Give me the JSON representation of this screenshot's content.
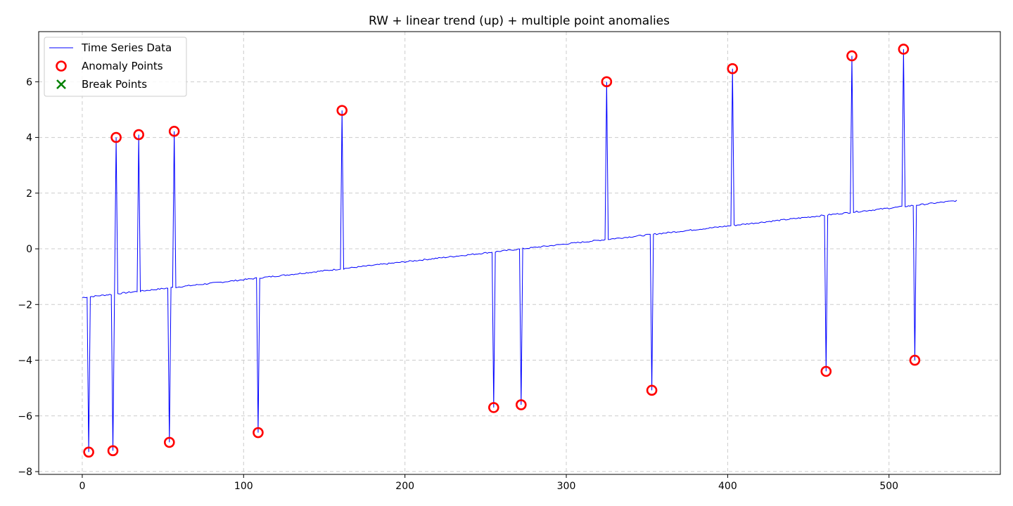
{
  "chart_data": {
    "type": "line",
    "title": "RW + linear trend (up) + multiple point anomalies",
    "xlabel": "",
    "ylabel": "",
    "xlim": [
      -27,
      569
    ],
    "ylim": [
      -8.1,
      7.8
    ],
    "x_ticks": [
      0,
      100,
      200,
      300,
      400,
      500
    ],
    "y_ticks": [
      -8,
      -6,
      -4,
      -2,
      0,
      2,
      4,
      6
    ],
    "grid": true,
    "legend_position": "top-left",
    "colors": {
      "series": "#0000ff",
      "anomaly": "#ff0000",
      "break": "#008000",
      "grid": "#cccccc"
    },
    "legend": [
      {
        "label": "Time Series Data",
        "marker": "line"
      },
      {
        "label": "Anomaly Points",
        "marker": "circle"
      },
      {
        "label": "Break Points",
        "marker": "x"
      }
    ],
    "baseline": {
      "x_start": 0,
      "x_end": 542,
      "y_start": -1.75,
      "y_end": 1.73
    },
    "anomalies": [
      {
        "x": 4,
        "y": -7.3
      },
      {
        "x": 19,
        "y": -7.25
      },
      {
        "x": 21,
        "y": 4.0
      },
      {
        "x": 35,
        "y": 4.1
      },
      {
        "x": 54,
        "y": -6.95
      },
      {
        "x": 57,
        "y": 4.22
      },
      {
        "x": 109,
        "y": -6.6
      },
      {
        "x": 161,
        "y": 4.97
      },
      {
        "x": 255,
        "y": -5.7
      },
      {
        "x": 272,
        "y": -5.6
      },
      {
        "x": 325,
        "y": 6.0
      },
      {
        "x": 353,
        "y": -5.08
      },
      {
        "x": 403,
        "y": 6.47
      },
      {
        "x": 461,
        "y": -4.4
      },
      {
        "x": 477,
        "y": 6.93
      },
      {
        "x": 509,
        "y": 7.17
      },
      {
        "x": 516,
        "y": -4.0
      }
    ],
    "break_points": []
  }
}
